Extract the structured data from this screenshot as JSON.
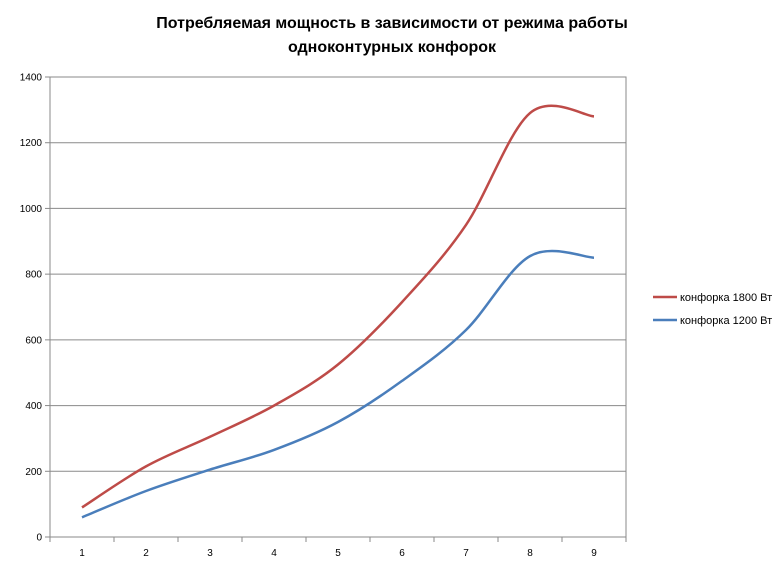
{
  "chart_data": {
    "type": "line",
    "title_line1": "Потребляемая мощность в зависимости от режима работы",
    "title_line2": "одноконтурных конфорок",
    "categories": [
      "1",
      "2",
      "3",
      "4",
      "5",
      "6",
      "7",
      "8",
      "9"
    ],
    "y_ticks": [
      "0",
      "200",
      "400",
      "600",
      "800",
      "1000",
      "1200",
      "1400"
    ],
    "ylim": [
      0,
      1400
    ],
    "grid": true,
    "legend_position": "right",
    "series": [
      {
        "name": "конфорка 1800 Вт",
        "color": "#be4b48",
        "values": [
          90,
          215,
          305,
          400,
          525,
          715,
          950,
          1290,
          1280
        ]
      },
      {
        "name": "конфорка 1200 Вт",
        "color": "#4a7ebb",
        "values": [
          60,
          140,
          205,
          265,
          350,
          475,
          630,
          855,
          850
        ]
      }
    ]
  }
}
